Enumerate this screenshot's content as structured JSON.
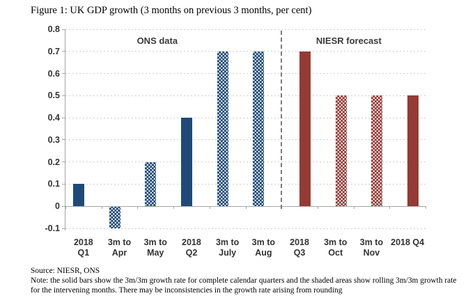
{
  "figure": {
    "title": "Figure 1: UK GDP growth (3 months on previous 3 months, per cent)",
    "source_line": "Source: NIESR, ONS",
    "note_line": "Note: the solid bars show the 3m/3m growth rate for complete calendar quarters and the shaded areas show rolling 3m/3m growth rate for the intervening months. There may be inconsistencies in the growth rate arising from rounding"
  },
  "chart_data": {
    "type": "bar",
    "title": "UK GDP growth (3 months on previous 3 months, per cent)",
    "categories": [
      "2018 Q1",
      "3m to Apr",
      "3m to May",
      "2018 Q2",
      "3m to July",
      "3m to Aug",
      "2018 Q3",
      "3m to Oct",
      "3m to Nov",
      "2018 Q4"
    ],
    "category_lines": [
      [
        "2018",
        "Q1"
      ],
      [
        "3m to",
        "Apr"
      ],
      [
        "3m to",
        "May"
      ],
      [
        "2018",
        "Q2"
      ],
      [
        "3m to",
        "July"
      ],
      [
        "3m to",
        "Aug"
      ],
      [
        "2018",
        "Q3"
      ],
      [
        "3m to",
        "Oct"
      ],
      [
        "3m to",
        "Nov"
      ],
      [
        "2018 Q4"
      ]
    ],
    "values": [
      0.1,
      -0.1,
      0.2,
      0.4,
      0.7,
      0.7,
      0.7,
      0.5,
      0.5,
      0.5
    ],
    "bar_fill": [
      "solid",
      "dotted",
      "dotted",
      "solid",
      "dotted",
      "dotted",
      "solid",
      "dotted",
      "dotted",
      "solid"
    ],
    "series": [
      {
        "name": "ONS data",
        "color": "#1f4a77",
        "category_indexes": [
          0,
          1,
          2,
          3,
          4,
          5
        ]
      },
      {
        "name": "NIESR forecast",
        "color": "#963a35",
        "category_indexes": [
          6,
          7,
          8,
          9
        ]
      }
    ],
    "section_labels": [
      "ONS data",
      "NIESR forecast"
    ],
    "divider_after_index": 5,
    "ylim": [
      -0.1,
      0.8
    ],
    "ytick_step": 0.1,
    "yticks": [
      0.8,
      0.7,
      0.6,
      0.5,
      0.4,
      0.3,
      0.2,
      0.1,
      0,
      -0.1
    ],
    "ytick_labels": [
      "0.8",
      "0.7",
      "0.6",
      "0.5",
      "0.4",
      "0.3",
      "0.2",
      "0.1",
      "0",
      "-0.1"
    ],
    "xlabel": "",
    "ylabel": "",
    "grid": "horizontal-dashed",
    "legend_position": "none",
    "colors": {
      "ons_bar": "#1f4a77",
      "niesr_bar": "#963a35",
      "gridline": "#cfcfcf",
      "axis_line": "#a6a6a6",
      "divider_line": "#7a7a7a",
      "chart_text": "#333333",
      "title_text": "#000000"
    }
  }
}
